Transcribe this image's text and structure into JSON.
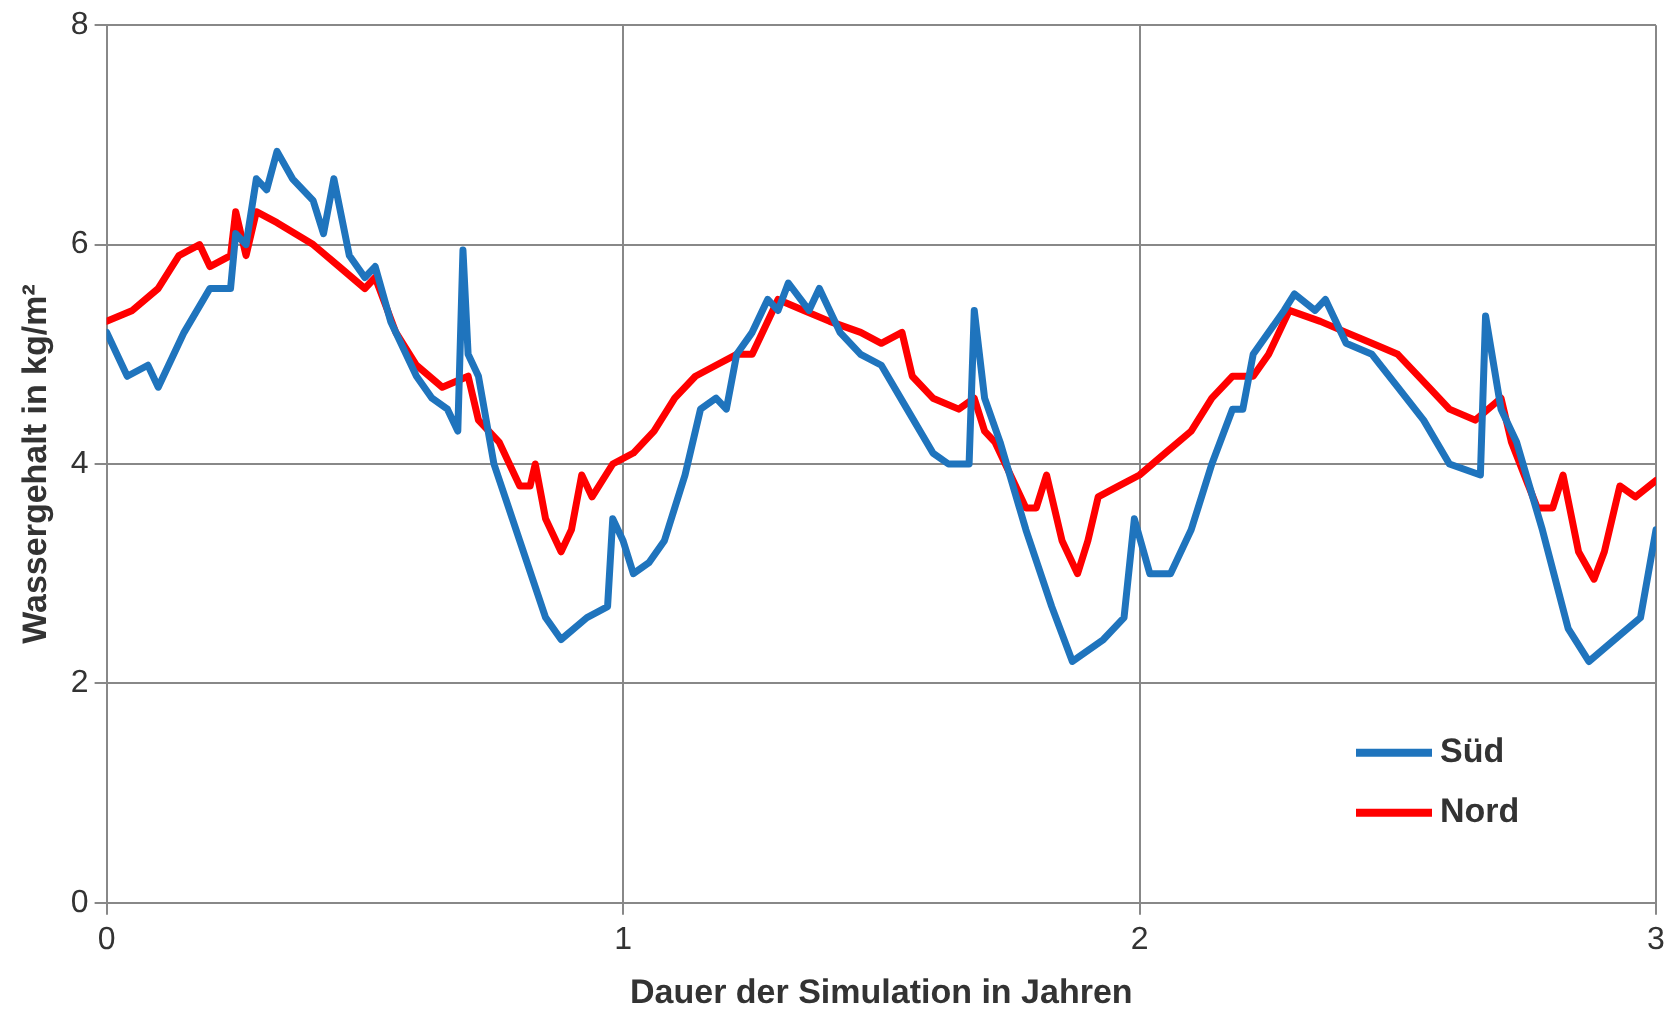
{
  "chart_data": {
    "type": "line",
    "xlabel": "Dauer der Simulation in Jahren",
    "ylabel": "Wassergehalt in kg/m²",
    "xlim": [
      0,
      3
    ],
    "xticks": [
      0,
      1,
      2,
      3
    ],
    "ylim": [
      0,
      8
    ],
    "yticks": [
      0,
      2,
      4,
      6,
      8
    ],
    "grid": true,
    "legend": "bottom right",
    "marker": "none",
    "line_style": "solid",
    "series": [
      {
        "name": "Süd",
        "color": "#1f74bd",
        "x": [
          0,
          0.04,
          0.08,
          0.1,
          0.15,
          0.2,
          0.24,
          0.25,
          0.27,
          0.29,
          0.31,
          0.33,
          0.36,
          0.4,
          0.42,
          0.44,
          0.47,
          0.5,
          0.52,
          0.55,
          0.6,
          0.63,
          0.66,
          0.68,
          0.69,
          0.7,
          0.72,
          0.75,
          0.8,
          0.85,
          0.88,
          0.93,
          0.97,
          0.98,
          1.0,
          1.02,
          1.05,
          1.08,
          1.12,
          1.15,
          1.18,
          1.2,
          1.22,
          1.25,
          1.28,
          1.3,
          1.32,
          1.36,
          1.38,
          1.42,
          1.46,
          1.5,
          1.55,
          1.6,
          1.63,
          1.67,
          1.68,
          1.7,
          1.73,
          1.78,
          1.83,
          1.87,
          1.93,
          1.97,
          1.99,
          2.02,
          2.06,
          2.1,
          2.14,
          2.18,
          2.2,
          2.22,
          2.28,
          2.3,
          2.34,
          2.36,
          2.4,
          2.45,
          2.5,
          2.55,
          2.6,
          2.66,
          2.67,
          2.7,
          2.73,
          2.78,
          2.83,
          2.87,
          2.92,
          2.97,
          3.0
        ],
        "values": [
          5.2,
          4.8,
          4.9,
          4.7,
          5.2,
          5.6,
          5.6,
          6.1,
          6.0,
          6.6,
          6.5,
          6.85,
          6.6,
          6.4,
          6.1,
          6.6,
          5.9,
          5.7,
          5.8,
          5.3,
          4.8,
          4.6,
          4.5,
          4.3,
          5.95,
          5.0,
          4.8,
          4.0,
          3.3,
          2.6,
          2.4,
          2.6,
          2.7,
          3.5,
          3.3,
          3.0,
          3.1,
          3.3,
          3.9,
          4.5,
          4.6,
          4.5,
          5.0,
          5.2,
          5.5,
          5.4,
          5.65,
          5.4,
          5.6,
          5.2,
          5.0,
          4.9,
          4.5,
          4.1,
          4.0,
          4.0,
          5.4,
          4.6,
          4.2,
          3.4,
          2.7,
          2.2,
          2.4,
          2.6,
          3.5,
          3.0,
          3.0,
          3.4,
          4.0,
          4.5,
          4.5,
          5.0,
          5.4,
          5.55,
          5.4,
          5.5,
          5.1,
          5.0,
          4.7,
          4.4,
          4.0,
          3.9,
          5.35,
          4.5,
          4.2,
          3.4,
          2.5,
          2.2,
          2.4,
          2.6,
          3.4
        ]
      },
      {
        "name": "Nord",
        "color": "#ff0000",
        "x": [
          0,
          0.05,
          0.1,
          0.14,
          0.18,
          0.2,
          0.24,
          0.25,
          0.27,
          0.29,
          0.33,
          0.4,
          0.45,
          0.5,
          0.52,
          0.56,
          0.6,
          0.65,
          0.7,
          0.72,
          0.76,
          0.8,
          0.82,
          0.83,
          0.85,
          0.88,
          0.9,
          0.92,
          0.94,
          0.98,
          1.02,
          1.06,
          1.1,
          1.14,
          1.18,
          1.22,
          1.25,
          1.3,
          1.35,
          1.4,
          1.46,
          1.5,
          1.54,
          1.56,
          1.6,
          1.65,
          1.68,
          1.7,
          1.72,
          1.78,
          1.8,
          1.82,
          1.85,
          1.88,
          1.9,
          1.92,
          1.96,
          2.0,
          2.05,
          2.1,
          2.14,
          2.18,
          2.22,
          2.25,
          2.29,
          2.35,
          2.4,
          2.45,
          2.5,
          2.56,
          2.6,
          2.65,
          2.7,
          2.72,
          2.77,
          2.8,
          2.82,
          2.85,
          2.88,
          2.9,
          2.93,
          2.96,
          3.0
        ],
        "values": [
          5.3,
          5.4,
          5.6,
          5.9,
          6.0,
          5.8,
          5.9,
          6.3,
          5.9,
          6.3,
          6.2,
          6.0,
          5.8,
          5.6,
          5.7,
          5.2,
          4.9,
          4.7,
          4.8,
          4.4,
          4.2,
          3.8,
          3.8,
          4.0,
          3.5,
          3.2,
          3.4,
          3.9,
          3.7,
          4.0,
          4.1,
          4.3,
          4.6,
          4.8,
          4.9,
          5.0,
          5.0,
          5.5,
          5.4,
          5.3,
          5.2,
          5.1,
          5.2,
          4.8,
          4.6,
          4.5,
          4.6,
          4.3,
          4.2,
          3.6,
          3.6,
          3.9,
          3.3,
          3.0,
          3.3,
          3.7,
          3.8,
          3.9,
          4.1,
          4.3,
          4.6,
          4.8,
          4.8,
          5.0,
          5.4,
          5.3,
          5.2,
          5.1,
          5.0,
          4.7,
          4.5,
          4.4,
          4.6,
          4.2,
          3.6,
          3.6,
          3.9,
          3.2,
          2.95,
          3.2,
          3.8,
          3.7,
          3.85
        ]
      }
    ]
  }
}
